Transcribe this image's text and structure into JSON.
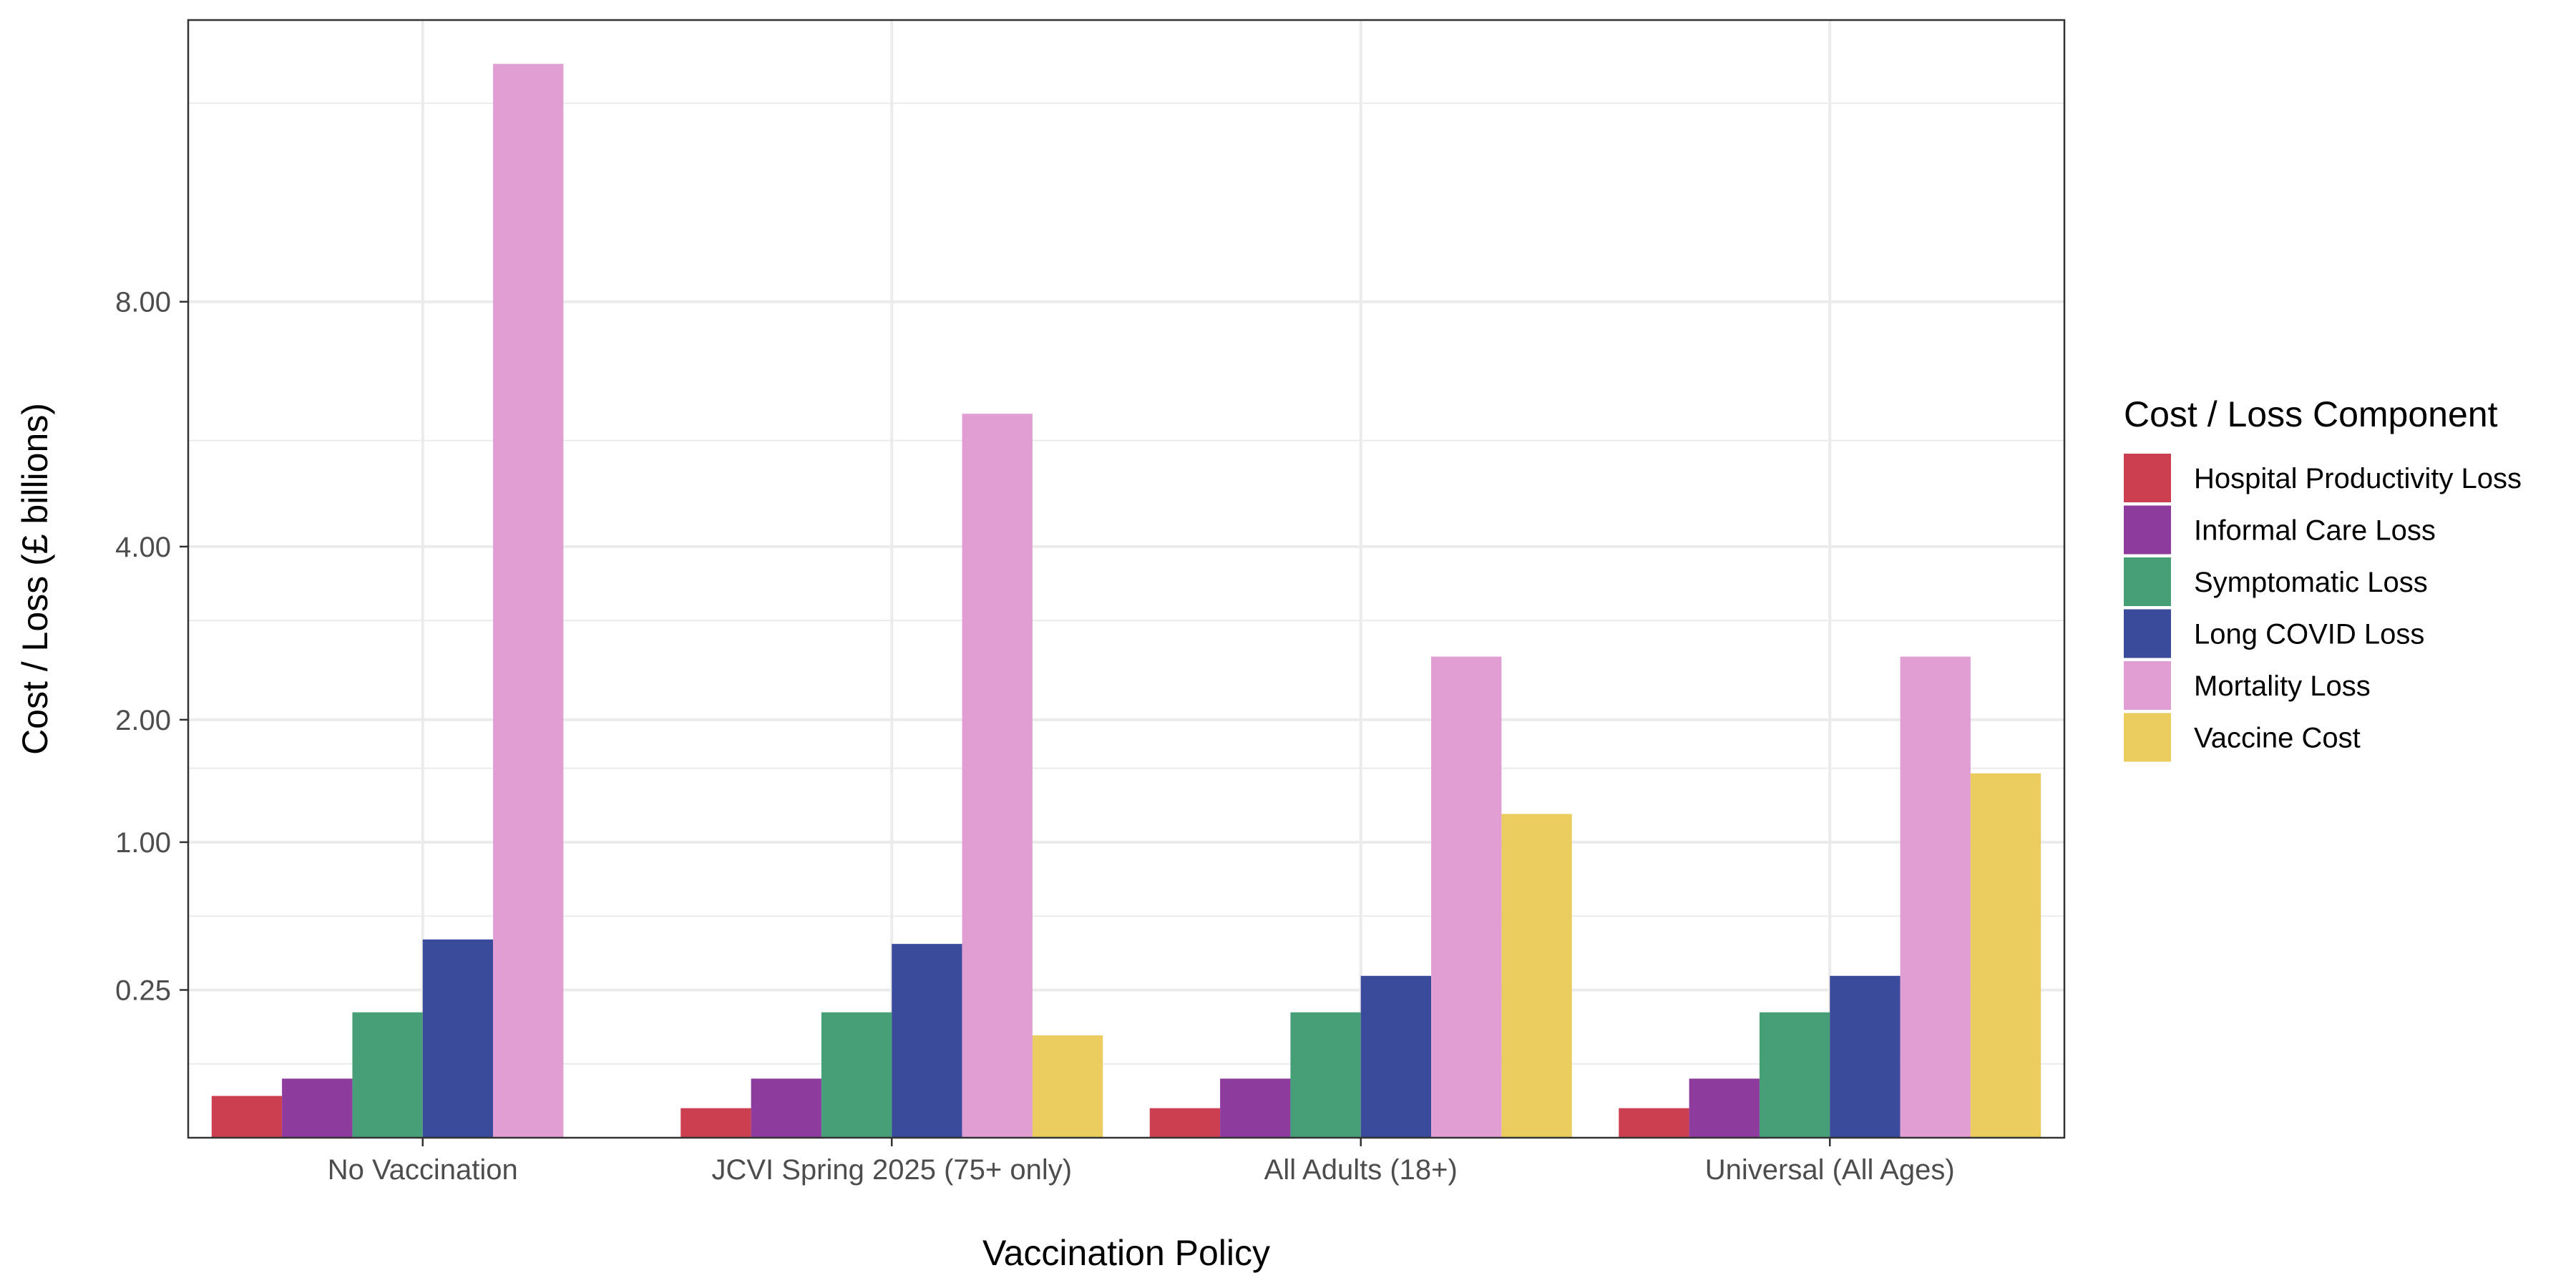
{
  "chart_data": {
    "type": "bar",
    "title": "",
    "xlabel": "Vaccination Policy",
    "ylabel": "Cost / Loss (£ billions)",
    "y_scale": "sqrt",
    "ylim": [
      0,
      14.3
    ],
    "y_ticks": [
      0.25,
      1.0,
      2.0,
      4.0,
      8.0
    ],
    "y_tick_labels": [
      "0.25",
      "1.00",
      "2.00",
      "4.00",
      "8.00"
    ],
    "y_minor_ticks": [
      0.0625,
      0.5625,
      1.5625,
      3.0625,
      5.5625,
      12.25
    ],
    "grid": true,
    "legend_title": "Cost / Loss Component",
    "legend_position": "right",
    "categories": [
      "No Vaccination",
      "JCVI Spring 2025 (75+ only)",
      "All Adults (18+)",
      "Universal (All Ages)"
    ],
    "series": [
      {
        "name": "Hospital Productivity Loss",
        "color": "#CC3F51",
        "values": [
          0.02,
          0.01,
          0.01,
          0.01
        ]
      },
      {
        "name": "Informal Care Loss",
        "color": "#8E3B9E",
        "values": [
          0.04,
          0.04,
          0.04,
          0.04
        ]
      },
      {
        "name": "Symptomatic Loss",
        "color": "#469F77",
        "values": [
          0.18,
          0.18,
          0.18,
          0.18
        ]
      },
      {
        "name": "Long COVID Loss",
        "color": "#3B4B9B",
        "values": [
          0.45,
          0.43,
          0.3,
          0.3
        ]
      },
      {
        "name": "Mortality Loss",
        "color": "#E09ED3",
        "values": [
          13.2,
          6.0,
          2.65,
          2.65
        ]
      },
      {
        "name": "Vaccine Cost",
        "color": "#EBCD5F",
        "values": [
          null,
          0.12,
          1.2,
          1.52
        ]
      }
    ]
  }
}
